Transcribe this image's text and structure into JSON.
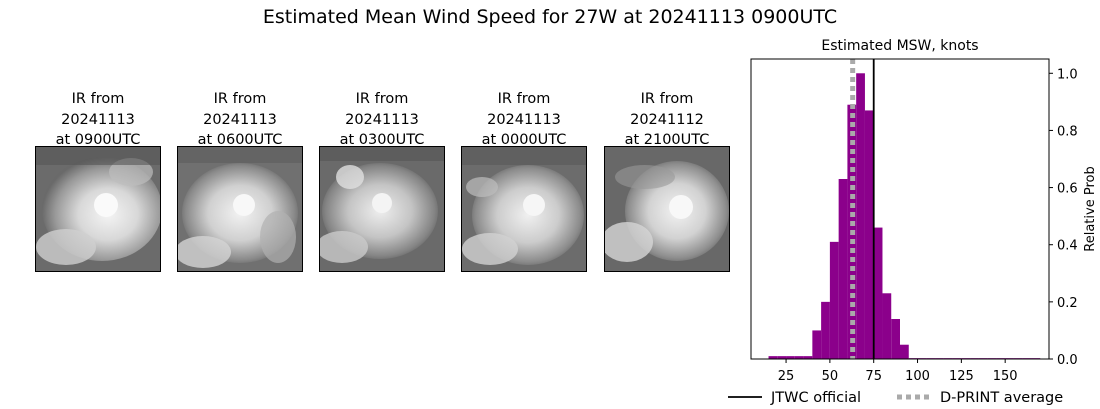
{
  "figure_title": "Estimated Mean Wind Speed for 27W at 20241113 0900UTC",
  "ir_panels": [
    {
      "line1": "IR from",
      "line2": "20241113",
      "line3": "at 0900UTC"
    },
    {
      "line1": "IR from",
      "line2": "20241113",
      "line3": "at 0600UTC"
    },
    {
      "line1": "IR from",
      "line2": "20241113",
      "line3": "at 0300UTC"
    },
    {
      "line1": "IR from",
      "line2": "20241113",
      "line3": "at 0000UTC"
    },
    {
      "line1": "IR from",
      "line2": "20241112",
      "line3": "at 2100UTC"
    }
  ],
  "chart_data": {
    "type": "bar",
    "title": "Estimated MSW, knots",
    "xlabel": "",
    "ylabel": "Relative Prob",
    "xlim": [
      5,
      175
    ],
    "ylim": [
      0,
      1.05
    ],
    "x_ticks": [
      25,
      50,
      75,
      100,
      125,
      150
    ],
    "y_ticks": [
      0.0,
      0.2,
      0.4,
      0.6,
      0.8,
      1.0
    ],
    "bin_width": 5,
    "bar_color": "#8b008b",
    "bins": [
      {
        "x": 15,
        "value": 0.01
      },
      {
        "x": 20,
        "value": 0.01
      },
      {
        "x": 25,
        "value": 0.01
      },
      {
        "x": 30,
        "value": 0.01
      },
      {
        "x": 35,
        "value": 0.01
      },
      {
        "x": 40,
        "value": 0.1
      },
      {
        "x": 45,
        "value": 0.2
      },
      {
        "x": 50,
        "value": 0.41
      },
      {
        "x": 55,
        "value": 0.63
      },
      {
        "x": 60,
        "value": 0.89
      },
      {
        "x": 65,
        "value": 1.0
      },
      {
        "x": 70,
        "value": 0.87
      },
      {
        "x": 75,
        "value": 0.46
      },
      {
        "x": 80,
        "value": 0.23
      },
      {
        "x": 85,
        "value": 0.14
      },
      {
        "x": 90,
        "value": 0.05
      },
      {
        "x": 95,
        "value": 0.003
      },
      {
        "x": 100,
        "value": 0.003
      },
      {
        "x": 105,
        "value": 0.003
      },
      {
        "x": 110,
        "value": 0.003
      },
      {
        "x": 115,
        "value": 0.003
      },
      {
        "x": 120,
        "value": 0.003
      },
      {
        "x": 125,
        "value": 0.003
      },
      {
        "x": 130,
        "value": 0.003
      },
      {
        "x": 135,
        "value": 0.003
      },
      {
        "x": 140,
        "value": 0.003
      },
      {
        "x": 145,
        "value": 0.003
      },
      {
        "x": 150,
        "value": 0.003
      },
      {
        "x": 155,
        "value": 0.003
      },
      {
        "x": 160,
        "value": 0.003
      },
      {
        "x": 165,
        "value": 0.003
      }
    ],
    "reference_lines": [
      {
        "name": "JTWC official",
        "x": 75,
        "color": "#000000",
        "style": "solid"
      },
      {
        "name": "D-PRINT average",
        "x": 63,
        "color": "#aaaaaa",
        "style": "dotted"
      }
    ],
    "legend_position": "bottom"
  }
}
